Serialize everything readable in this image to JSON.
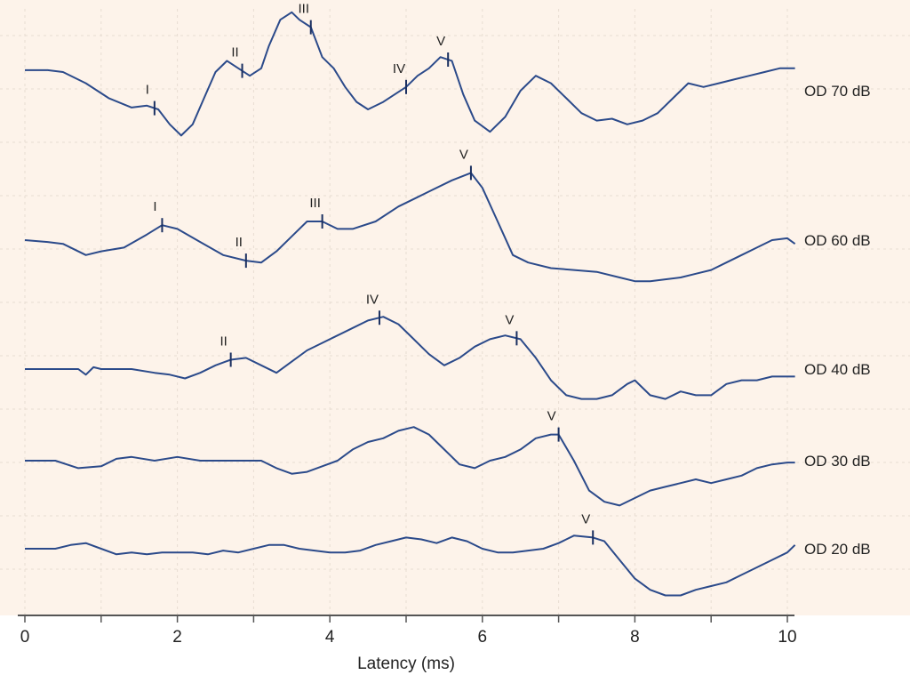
{
  "chart_data": {
    "type": "line",
    "title": "",
    "xlabel": "Latency (ms)",
    "ylabel": "",
    "xlim": [
      0,
      10
    ],
    "xticks": [
      0,
      2,
      4,
      6,
      8,
      10
    ],
    "grid": true,
    "colors": {
      "trace": "#2b4a8a",
      "background": "#fdf3ea",
      "grid": "#e8ddd2",
      "axis": "#555555"
    },
    "series": [
      {
        "name": "OD 70 dB",
        "x": [
          0,
          0.3,
          0.5,
          0.8,
          1.1,
          1.4,
          1.6,
          1.75,
          1.9,
          2.05,
          2.2,
          2.35,
          2.5,
          2.65,
          2.8,
          2.95,
          3.1,
          3.2,
          3.35,
          3.5,
          3.6,
          3.75,
          3.9,
          4.05,
          4.2,
          4.35,
          4.5,
          4.7,
          4.85,
          5.0,
          5.15,
          5.3,
          5.45,
          5.6,
          5.75,
          5.9,
          6.1,
          6.3,
          6.5,
          6.7,
          6.9,
          7.1,
          7.3,
          7.5,
          7.7,
          7.9,
          8.1,
          8.3,
          8.5,
          8.7,
          8.9,
          9.1,
          9.3,
          9.5,
          9.7,
          9.9,
          10.1
        ],
        "y": [
          0.55,
          0.55,
          0.5,
          0.2,
          -0.2,
          -0.45,
          -0.4,
          -0.5,
          -0.9,
          -1.2,
          -0.9,
          -0.2,
          0.5,
          0.8,
          0.6,
          0.4,
          0.6,
          1.2,
          1.9,
          2.1,
          1.9,
          1.7,
          0.9,
          0.6,
          0.1,
          -0.3,
          -0.5,
          -0.3,
          -0.1,
          0.1,
          0.4,
          0.6,
          0.9,
          0.8,
          -0.1,
          -0.8,
          -1.1,
          -0.7,
          0.0,
          0.4,
          0.2,
          -0.2,
          -0.6,
          -0.8,
          -0.75,
          -0.9,
          -0.8,
          -0.6,
          -0.2,
          0.2,
          0.1,
          0.2,
          0.3,
          0.4,
          0.5,
          0.6,
          0.6
        ],
        "peaks": [
          {
            "label": "I",
            "x": 1.7
          },
          {
            "label": "II",
            "x": 2.85
          },
          {
            "label": "III",
            "x": 3.75
          },
          {
            "label": "IV",
            "x": 5.0
          },
          {
            "label": "V",
            "x": 5.55
          }
        ]
      },
      {
        "name": "OD 60 dB",
        "x": [
          0,
          0.3,
          0.5,
          0.8,
          1.0,
          1.3,
          1.6,
          1.8,
          2.0,
          2.3,
          2.6,
          2.9,
          3.1,
          3.3,
          3.5,
          3.7,
          3.9,
          4.1,
          4.3,
          4.6,
          4.9,
          5.1,
          5.3,
          5.6,
          5.85,
          6.0,
          6.2,
          6.4,
          6.6,
          6.9,
          7.2,
          7.5,
          7.8,
          8.0,
          8.2,
          8.4,
          8.6,
          8.8,
          9.0,
          9.2,
          9.4,
          9.6,
          9.8,
          10.0,
          10.1
        ],
        "y": [
          0.0,
          -0.05,
          -0.1,
          -0.4,
          -0.3,
          -0.2,
          0.15,
          0.4,
          0.3,
          -0.05,
          -0.4,
          -0.55,
          -0.6,
          -0.3,
          0.1,
          0.5,
          0.5,
          0.3,
          0.3,
          0.5,
          0.9,
          1.1,
          1.3,
          1.6,
          1.8,
          1.4,
          0.5,
          -0.4,
          -0.6,
          -0.75,
          -0.8,
          -0.85,
          -1.0,
          -1.1,
          -1.1,
          -1.05,
          -1.0,
          -0.9,
          -0.8,
          -0.6,
          -0.4,
          -0.2,
          0.0,
          0.05,
          -0.1
        ],
        "peaks": [
          {
            "label": "I",
            "x": 1.8
          },
          {
            "label": "II",
            "x": 2.9
          },
          {
            "label": "III",
            "x": 3.9
          },
          {
            "label": "V",
            "x": 5.85
          }
        ]
      },
      {
        "name": "OD 40 dB",
        "x": [
          0,
          0.4,
          0.7,
          0.8,
          0.9,
          1.0,
          1.4,
          1.7,
          1.9,
          2.1,
          2.3,
          2.5,
          2.7,
          2.9,
          3.1,
          3.3,
          3.5,
          3.7,
          3.9,
          4.1,
          4.3,
          4.5,
          4.7,
          4.9,
          5.1,
          5.3,
          5.5,
          5.7,
          5.9,
          6.1,
          6.3,
          6.5,
          6.7,
          6.9,
          7.1,
          7.3,
          7.5,
          7.7,
          7.9,
          8.0,
          8.2,
          8.4,
          8.6,
          8.8,
          9.0,
          9.2,
          9.4,
          9.6,
          9.8,
          10.0,
          10.1
        ],
        "y": [
          0.0,
          0.0,
          0.0,
          -0.15,
          0.05,
          0.0,
          0.0,
          -0.1,
          -0.15,
          -0.25,
          -0.1,
          0.1,
          0.25,
          0.3,
          0.1,
          -0.1,
          0.2,
          0.5,
          0.7,
          0.9,
          1.1,
          1.3,
          1.4,
          1.2,
          0.8,
          0.4,
          0.1,
          0.3,
          0.6,
          0.8,
          0.9,
          0.8,
          0.3,
          -0.3,
          -0.7,
          -0.8,
          -0.8,
          -0.7,
          -0.4,
          -0.3,
          -0.7,
          -0.8,
          -0.6,
          -0.7,
          -0.7,
          -0.4,
          -0.3,
          -0.3,
          -0.2,
          -0.2,
          -0.2
        ],
        "peaks": [
          {
            "label": "II",
            "x": 2.7
          },
          {
            "label": "IV",
            "x": 4.65
          },
          {
            "label": "V",
            "x": 6.45
          }
        ]
      },
      {
        "name": "OD 30 dB",
        "x": [
          0,
          0.4,
          0.7,
          1.0,
          1.2,
          1.4,
          1.7,
          2.0,
          2.3,
          2.6,
          2.9,
          3.1,
          3.3,
          3.5,
          3.7,
          3.9,
          4.1,
          4.3,
          4.5,
          4.7,
          4.9,
          5.1,
          5.3,
          5.5,
          5.7,
          5.9,
          6.1,
          6.3,
          6.5,
          6.7,
          6.9,
          7.0,
          7.2,
          7.4,
          7.6,
          7.8,
          8.0,
          8.2,
          8.4,
          8.6,
          8.8,
          9.0,
          9.2,
          9.4,
          9.6,
          9.8,
          10.0,
          10.1
        ],
        "y": [
          0.0,
          0.0,
          -0.2,
          -0.15,
          0.05,
          0.1,
          0.0,
          0.1,
          0.0,
          0.0,
          0.0,
          0.0,
          -0.2,
          -0.35,
          -0.3,
          -0.15,
          0.0,
          0.3,
          0.5,
          0.6,
          0.8,
          0.9,
          0.7,
          0.3,
          -0.1,
          -0.2,
          0.0,
          0.1,
          0.3,
          0.6,
          0.7,
          0.7,
          0.0,
          -0.8,
          -1.1,
          -1.2,
          -1.0,
          -0.8,
          -0.7,
          -0.6,
          -0.5,
          -0.6,
          -0.5,
          -0.4,
          -0.2,
          -0.1,
          -0.05,
          -0.05
        ],
        "peaks": [
          {
            "label": "V",
            "x": 7.0
          }
        ]
      },
      {
        "name": "OD 20 dB",
        "x": [
          0,
          0.4,
          0.6,
          0.8,
          1.0,
          1.2,
          1.4,
          1.6,
          1.8,
          2.0,
          2.2,
          2.4,
          2.6,
          2.8,
          3.0,
          3.2,
          3.4,
          3.6,
          3.8,
          4.0,
          4.2,
          4.4,
          4.6,
          4.8,
          5.0,
          5.2,
          5.4,
          5.6,
          5.8,
          6.0,
          6.2,
          6.4,
          6.6,
          6.8,
          7.0,
          7.2,
          7.45,
          7.6,
          7.8,
          8.0,
          8.2,
          8.4,
          8.6,
          8.8,
          9.0,
          9.2,
          9.4,
          9.6,
          9.8,
          10.0,
          10.1
        ],
        "y": [
          0.0,
          0.0,
          0.1,
          0.15,
          0.0,
          -0.15,
          -0.1,
          -0.15,
          -0.1,
          -0.1,
          -0.1,
          -0.15,
          -0.05,
          -0.1,
          0.0,
          0.1,
          0.1,
          0.0,
          -0.05,
          -0.1,
          -0.1,
          -0.05,
          0.1,
          0.2,
          0.3,
          0.25,
          0.15,
          0.3,
          0.2,
          0.0,
          -0.1,
          -0.1,
          -0.05,
          0.0,
          0.15,
          0.35,
          0.3,
          0.2,
          -0.3,
          -0.8,
          -1.1,
          -1.25,
          -1.25,
          -1.1,
          -1.0,
          -0.9,
          -0.7,
          -0.5,
          -0.3,
          -0.1,
          0.1
        ],
        "peaks": [
          {
            "label": "V",
            "x": 7.45
          }
        ]
      }
    ]
  }
}
